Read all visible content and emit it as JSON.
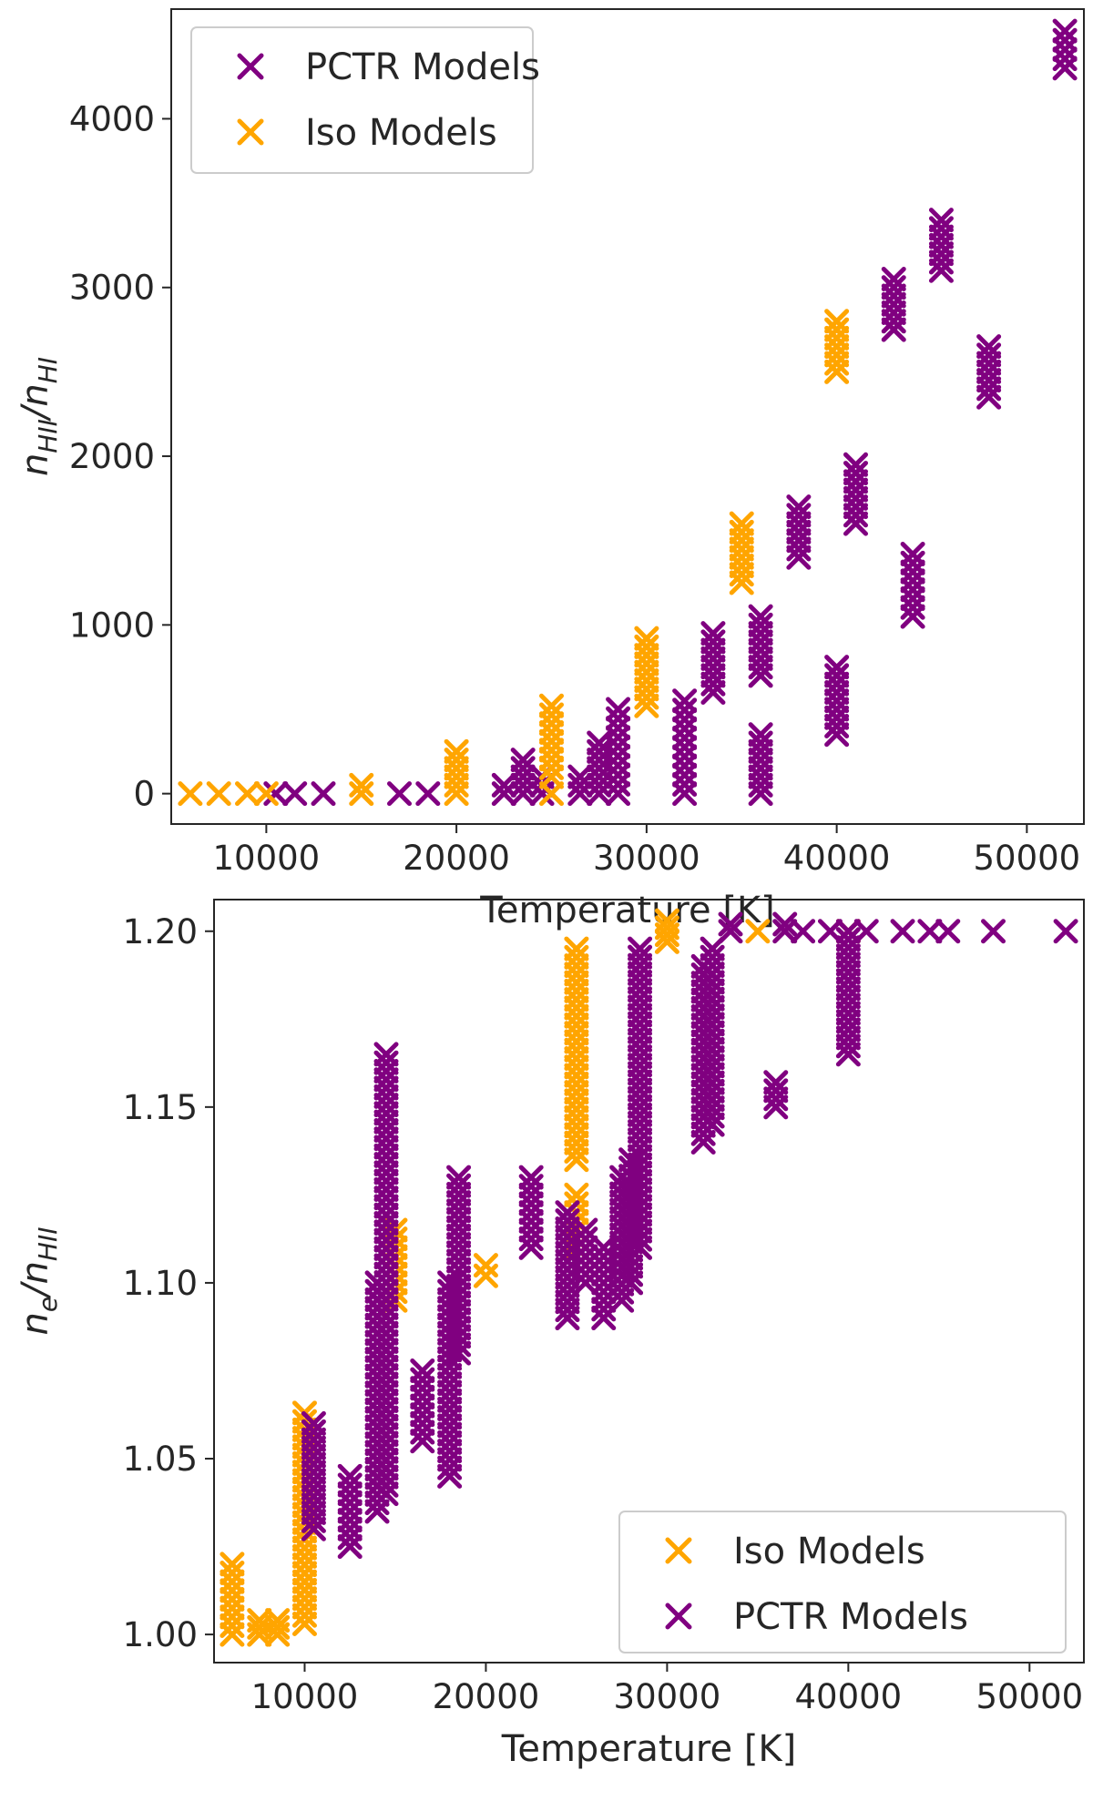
{
  "colors": {
    "pctr": "#800080",
    "iso": "#FFA500",
    "axis": "#262626"
  },
  "chart_data": [
    {
      "type": "scatter",
      "title": "",
      "xlabel": "Temperature [K]",
      "ylabel_main": "n",
      "ylabel_sub_num": "HII",
      "ylabel_sep": "/n",
      "ylabel_sub_den": "HI",
      "xlim": [
        5000,
        53000
      ],
      "ylim": [
        -180,
        4650
      ],
      "xticks": [
        10000,
        20000,
        30000,
        40000,
        50000
      ],
      "xtick_labels": [
        "10000",
        "20000",
        "30000",
        "40000",
        "50000"
      ],
      "yticks": [
        0,
        1000,
        2000,
        3000,
        4000
      ],
      "ytick_labels": [
        "0",
        "1000",
        "2000",
        "3000",
        "4000"
      ],
      "legend": {
        "position": "top-left",
        "entries": [
          {
            "label": "PCTR Models",
            "series": "pctr"
          },
          {
            "label": "Iso Models",
            "series": "iso"
          }
        ]
      },
      "series": [
        {
          "name": "PCTR Models",
          "key": "pctr",
          "x": [
            10500,
            11500,
            13000,
            17000,
            18500,
            22500,
            23500,
            24500,
            26500,
            27500,
            28500,
            32000,
            33500,
            36000,
            36000,
            38000,
            40000,
            41000,
            43000,
            44000,
            45500,
            48000,
            52000
          ],
          "ymin": [
            0,
            0,
            0,
            0,
            0,
            0,
            0,
            0,
            0,
            0,
            0,
            0,
            600,
            0,
            700,
            1400,
            350,
            1600,
            2750,
            1050,
            3100,
            2350,
            4300
          ],
          "ymax": [
            0,
            0,
            0,
            0,
            0,
            50,
            200,
            100,
            100,
            300,
            500,
            550,
            950,
            350,
            1050,
            1700,
            750,
            1950,
            3050,
            1420,
            3400,
            2650,
            4520
          ]
        },
        {
          "name": "Iso Models",
          "key": "iso",
          "x": [
            6000,
            7500,
            9000,
            10000,
            15000,
            20000,
            25000,
            25000,
            30000,
            35000,
            40000
          ],
          "ymin": [
            0,
            0,
            0,
            0,
            0,
            0,
            100,
            0,
            520,
            1250,
            2500
          ],
          "ymax": [
            0,
            0,
            0,
            0,
            50,
            250,
            520,
            0,
            920,
            1600,
            2800
          ]
        }
      ]
    },
    {
      "type": "scatter",
      "title": "",
      "xlabel": "Temperature [K]",
      "ylabel_main": "n",
      "ylabel_sub_num": "e",
      "ylabel_sep": "/n",
      "ylabel_sub_den": "HII",
      "xlim": [
        5000,
        53000
      ],
      "ylim": [
        0.992,
        1.209
      ],
      "xticks": [
        10000,
        20000,
        30000,
        40000,
        50000
      ],
      "xtick_labels": [
        "10000",
        "20000",
        "30000",
        "40000",
        "50000"
      ],
      "yticks": [
        1.0,
        1.05,
        1.1,
        1.15,
        1.2
      ],
      "ytick_labels": [
        "1.00",
        "1.05",
        "1.10",
        "1.15",
        "1.20"
      ],
      "legend": {
        "position": "bottom-right",
        "entries": [
          {
            "label": "Iso Models",
            "series": "iso"
          },
          {
            "label": "PCTR Models",
            "series": "pctr"
          }
        ]
      },
      "series": [
        {
          "name": "Iso Models",
          "key": "iso",
          "x": [
            6000,
            7500,
            8500,
            10000,
            15000,
            20000,
            25000,
            25000,
            30000,
            35000,
            40000
          ],
          "ymin": [
            1.0,
            1.0,
            1.0,
            1.003,
            1.095,
            1.102,
            1.11,
            1.135,
            1.197,
            1.2,
            1.2
          ],
          "ymax": [
            1.02,
            1.004,
            1.004,
            1.063,
            1.115,
            1.105,
            1.125,
            1.195,
            1.203,
            1.201,
            1.201
          ]
        },
        {
          "name": "PCTR Models",
          "key": "pctr",
          "x": [
            10500,
            12500,
            14000,
            14500,
            16500,
            18000,
            18500,
            22500,
            24500,
            25500,
            26500,
            27500,
            28000,
            28500,
            32000,
            32500,
            33500,
            36000,
            36500,
            37500,
            39000,
            40000,
            41000,
            43000,
            44500,
            45500,
            48000,
            52000
          ],
          "ymin": [
            1.03,
            1.025,
            1.035,
            1.04,
            1.055,
            1.045,
            1.08,
            1.11,
            1.09,
            1.1,
            1.09,
            1.095,
            1.1,
            1.11,
            1.14,
            1.145,
            1.2,
            1.15,
            1.2,
            1.2,
            1.2,
            1.165,
            1.2,
            1.2,
            1.2,
            1.2,
            1.2,
            1.2
          ],
          "ymax": [
            1.06,
            1.045,
            1.1,
            1.165,
            1.075,
            1.1,
            1.13,
            1.13,
            1.12,
            1.115,
            1.11,
            1.13,
            1.135,
            1.195,
            1.19,
            1.195,
            1.202,
            1.157,
            1.202,
            1.201,
            1.201,
            1.2,
            1.201,
            1.201,
            1.201,
            1.201,
            1.201,
            1.201
          ]
        }
      ]
    }
  ]
}
